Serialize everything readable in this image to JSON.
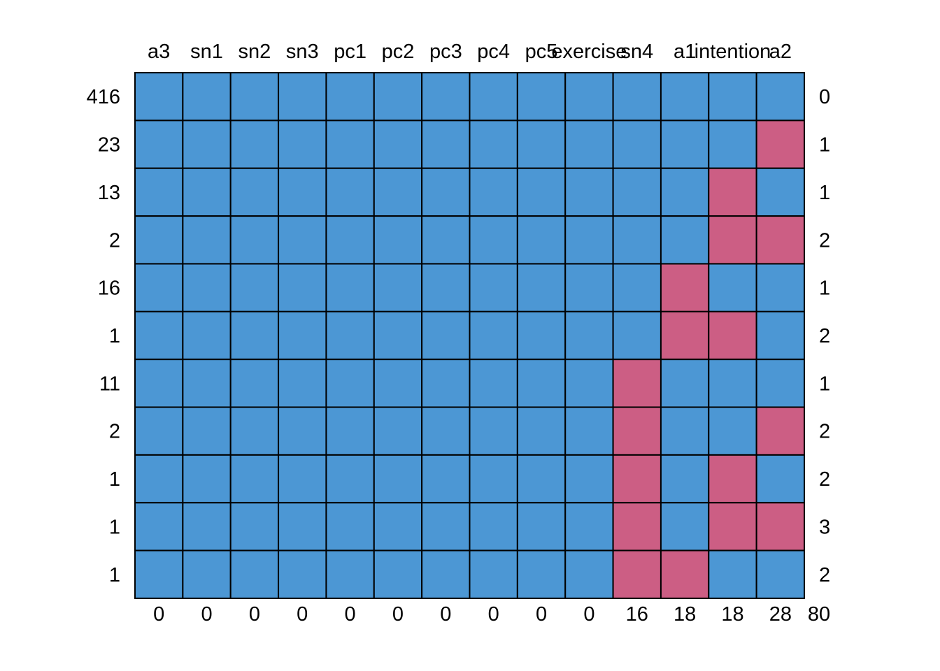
{
  "chart_data": {
    "type": "heatmap",
    "title": "",
    "xlabel": "",
    "ylabel": "",
    "variables": [
      "a3",
      "sn1",
      "sn2",
      "sn3",
      "pc1",
      "pc2",
      "pc3",
      "pc4",
      "pc5",
      "exercise",
      "sn4",
      "a1",
      "intention",
      "a2"
    ],
    "variable_missing_counts": [
      "0",
      "0",
      "0",
      "0",
      "0",
      "0",
      "0",
      "0",
      "0",
      "0",
      "16",
      "18",
      "18",
      "28"
    ],
    "total_missing": "80",
    "pattern_frequencies": [
      "416",
      "23",
      "13",
      "2",
      "16",
      "1",
      "11",
      "2",
      "1",
      "1",
      "1"
    ],
    "pattern_missing_per_row": [
      "0",
      "1",
      "1",
      "2",
      "1",
      "2",
      "1",
      "2",
      "2",
      "3",
      "2"
    ],
    "patterns": [
      [
        1,
        1,
        1,
        1,
        1,
        1,
        1,
        1,
        1,
        1,
        1,
        1,
        1,
        1
      ],
      [
        1,
        1,
        1,
        1,
        1,
        1,
        1,
        1,
        1,
        1,
        1,
        1,
        1,
        0
      ],
      [
        1,
        1,
        1,
        1,
        1,
        1,
        1,
        1,
        1,
        1,
        1,
        1,
        0,
        1
      ],
      [
        1,
        1,
        1,
        1,
        1,
        1,
        1,
        1,
        1,
        1,
        1,
        1,
        0,
        0
      ],
      [
        1,
        1,
        1,
        1,
        1,
        1,
        1,
        1,
        1,
        1,
        1,
        0,
        1,
        1
      ],
      [
        1,
        1,
        1,
        1,
        1,
        1,
        1,
        1,
        1,
        1,
        1,
        0,
        0,
        1
      ],
      [
        1,
        1,
        1,
        1,
        1,
        1,
        1,
        1,
        1,
        1,
        0,
        1,
        1,
        1
      ],
      [
        1,
        1,
        1,
        1,
        1,
        1,
        1,
        1,
        1,
        1,
        0,
        1,
        1,
        0
      ],
      [
        1,
        1,
        1,
        1,
        1,
        1,
        1,
        1,
        1,
        1,
        0,
        1,
        0,
        1
      ],
      [
        1,
        1,
        1,
        1,
        1,
        1,
        1,
        1,
        1,
        1,
        0,
        1,
        0,
        0
      ],
      [
        1,
        1,
        1,
        1,
        1,
        1,
        1,
        1,
        1,
        1,
        0,
        0,
        1,
        1
      ]
    ],
    "colors": {
      "observed": "#4C97D4",
      "missing": "#CC5E84"
    },
    "grid": true,
    "legend": "none"
  }
}
